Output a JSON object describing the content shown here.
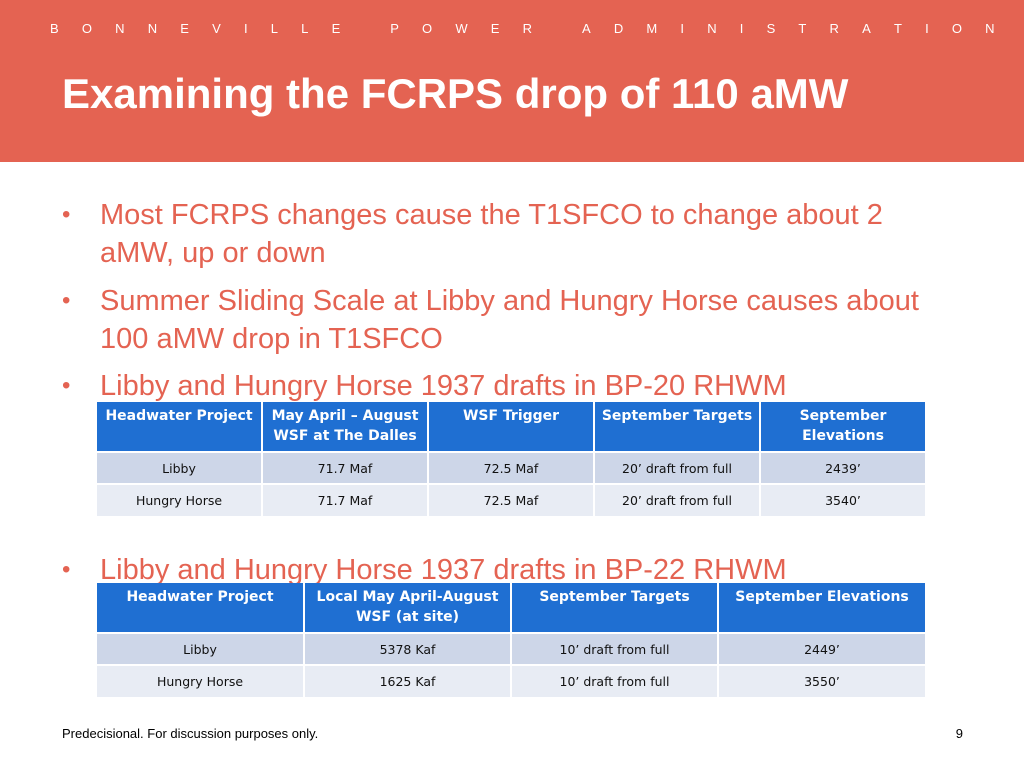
{
  "header": {
    "org_letters": [
      "B",
      "O",
      "N",
      "N",
      "E",
      "V",
      "I",
      "L",
      "L",
      "E",
      "",
      "P",
      "O",
      "W",
      "E",
      "R",
      "",
      "A",
      "D",
      "M",
      "I",
      "N",
      "I",
      "S",
      "T",
      "R",
      "A",
      "T",
      "I",
      "O",
      "N"
    ],
    "title": "Examining the FCRPS drop of 110 aMW"
  },
  "bullets": [
    "Most FCRPS changes cause the T1SFCO to change about 2 aMW, up or down",
    "Summer Sliding Scale at Libby and Hungry Horse causes about 100 aMW drop in T1SFCO",
    "Libby and Hungry Horse 1937 drafts in BP-20 RHWM",
    "Libby and Hungry Horse 1937 drafts in BP-22 RHWM"
  ],
  "bullet_marker": "•",
  "table1": {
    "headers": [
      "Headwater Project",
      "May April – August WSF at The Dalles",
      "WSF Trigger",
      "September Targets",
      "September Elevations"
    ],
    "rows": [
      [
        "Libby",
        "71.7 Maf",
        "72.5 Maf",
        "20’ draft from full",
        "2439’"
      ],
      [
        "Hungry Horse",
        "71.7 Maf",
        "72.5 Maf",
        "20’ draft from full",
        "3540’"
      ]
    ]
  },
  "table2": {
    "headers": [
      "Headwater Project",
      "Local May April-August WSF (at site)",
      "September Targets",
      "September Elevations"
    ],
    "rows": [
      [
        "Libby",
        "5378 Kaf",
        "10’ draft from full",
        "2449’"
      ],
      [
        "Hungry Horse",
        "1625 Kaf",
        "10’ draft from full",
        "3550’"
      ]
    ]
  },
  "footer": {
    "note": "Predecisional. For discussion purposes only.",
    "page": "9"
  },
  "colors": {
    "accent": "#e46352",
    "table_header": "#1f6fd2",
    "row_dark": "#cdd6e8",
    "row_light": "#e8ecf4"
  }
}
